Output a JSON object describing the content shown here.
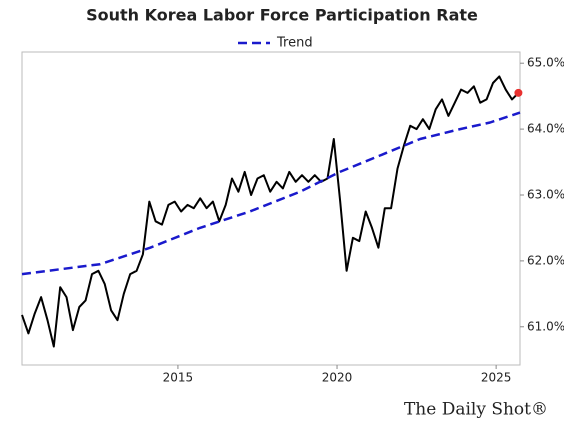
{
  "chart_data": {
    "type": "line",
    "title": "South Korea Labor Force Participation Rate",
    "source": "The Daily Shot®",
    "xlim": [
      2010.1,
      2025.75
    ],
    "xticks": [
      2015,
      2020,
      2025
    ],
    "ylim": [
      60.42,
      65.17
    ],
    "yticks": [
      {
        "value": 61,
        "label": "61.0%"
      },
      {
        "value": 62,
        "label": "62.0%"
      },
      {
        "value": 63,
        "label": "63.0%"
      },
      {
        "value": 64,
        "label": "64.0%"
      },
      {
        "value": 65,
        "label": "65.0%"
      }
    ],
    "grid": false,
    "legend": "top",
    "last_point_color": "#e8312f",
    "series": [
      {
        "name": null,
        "color": "#000000",
        "dash": false,
        "x": [
          2010.1,
          2010.3,
          2010.5,
          2010.7,
          2010.9,
          2011.1,
          2011.3,
          2011.5,
          2011.7,
          2011.9,
          2012.1,
          2012.3,
          2012.5,
          2012.7,
          2012.9,
          2013.1,
          2013.3,
          2013.5,
          2013.7,
          2013.9,
          2014.1,
          2014.3,
          2014.5,
          2014.7,
          2014.9,
          2015.1,
          2015.3,
          2015.5,
          2015.7,
          2015.9,
          2016.1,
          2016.3,
          2016.5,
          2016.7,
          2016.9,
          2017.1,
          2017.3,
          2017.5,
          2017.7,
          2017.9,
          2018.1,
          2018.3,
          2018.5,
          2018.7,
          2018.9,
          2019.1,
          2019.3,
          2019.5,
          2019.7,
          2019.9,
          2020.1,
          2020.3,
          2020.5,
          2020.7,
          2020.9,
          2021.1,
          2021.3,
          2021.5,
          2021.7,
          2021.9,
          2022.1,
          2022.3,
          2022.5,
          2022.7,
          2022.9,
          2023.1,
          2023.3,
          2023.5,
          2023.7,
          2023.9,
          2024.1,
          2024.3,
          2024.5,
          2024.7,
          2024.9,
          2025.1,
          2025.3,
          2025.5,
          2025.7
        ],
        "values": [
          61.18,
          60.9,
          61.2,
          61.45,
          61.1,
          60.7,
          61.6,
          61.45,
          60.95,
          61.3,
          61.4,
          61.8,
          61.85,
          61.65,
          61.25,
          61.1,
          61.5,
          61.8,
          61.85,
          62.1,
          62.9,
          62.6,
          62.55,
          62.85,
          62.9,
          62.75,
          62.85,
          62.8,
          62.95,
          62.8,
          62.9,
          62.6,
          62.85,
          63.25,
          63.05,
          63.35,
          63.0,
          63.25,
          63.3,
          63.05,
          63.2,
          63.1,
          63.35,
          63.2,
          63.3,
          63.2,
          63.3,
          63.2,
          63.25,
          63.85,
          62.9,
          61.85,
          62.35,
          62.3,
          62.75,
          62.5,
          62.2,
          62.8,
          62.8,
          63.4,
          63.75,
          64.05,
          64.0,
          64.15,
          64.0,
          64.3,
          64.45,
          64.2,
          64.4,
          64.6,
          64.55,
          64.65,
          64.4,
          64.45,
          64.7,
          64.8,
          64.6,
          64.45,
          64.55
        ]
      },
      {
        "name": "Trend",
        "color": "#1a1acc",
        "dash": true,
        "x": [
          2010.1,
          2012.55,
          2014.13,
          2015.69,
          2017.26,
          2018.84,
          2020.09,
          2021.35,
          2022.61,
          2023.87,
          2024.81,
          2025.75
        ],
        "values": [
          61.8,
          61.95,
          62.2,
          62.5,
          62.75,
          63.05,
          63.35,
          63.6,
          63.85,
          64.0,
          64.1,
          64.25
        ]
      }
    ]
  }
}
